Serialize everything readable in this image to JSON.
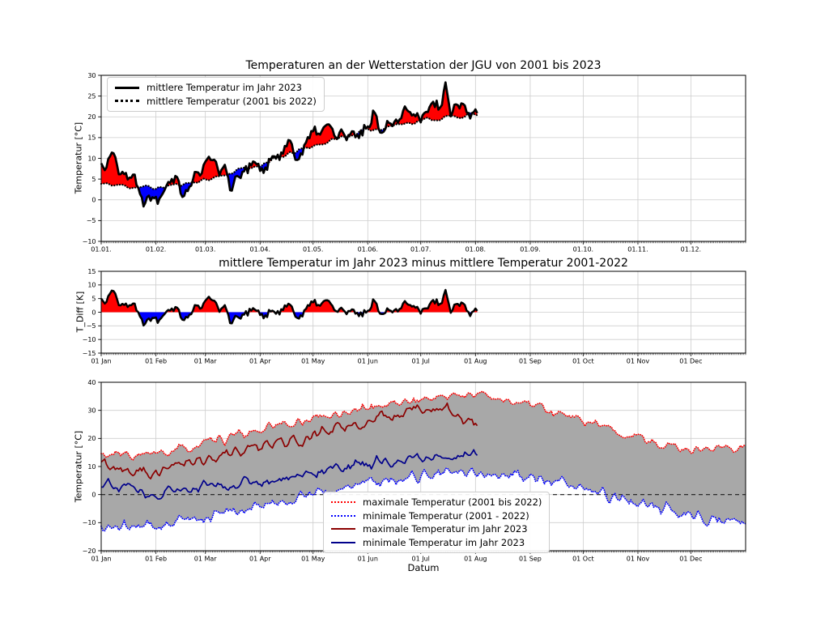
{
  "figure": {
    "background": "#ffffff"
  },
  "chart_data": [
    {
      "id": "mean-temperature-2023-vs-climatology",
      "type": "line",
      "title": "Temperaturen an der Wetterstation der JGU von 2001 bis 2023",
      "xlabel": "",
      "ylabel": "Temperatur [°C]",
      "ylim": [
        -10,
        30
      ],
      "yticks": [
        30,
        25,
        20,
        15,
        10,
        5,
        0,
        -5,
        -10
      ],
      "ytick_labels": [
        "30",
        "25",
        "20",
        "15",
        "10",
        "5",
        "0",
        "−5",
        "−10"
      ],
      "xlim_days": [
        0,
        365
      ],
      "xticks": {
        "days": [
          0,
          31,
          59,
          90,
          120,
          151,
          181,
          212,
          243,
          273,
          304,
          334
        ],
        "labels": [
          "01.01.",
          "01.02.",
          "01.03.",
          "01.04.",
          "01.05.",
          "01.06.",
          "01.07.",
          "01.08.",
          "01.09.",
          "01.10.",
          "01.11.",
          "01.12."
        ]
      },
      "grid": true,
      "legend": {
        "position": "upper left",
        "entries": [
          {
            "label": "mittlere Temperatur im Jahr 2023",
            "color": "#000000",
            "style": "solid",
            "width": 3
          },
          {
            "label": "mittlere Temperatur (2001 bis 2022)",
            "color": "#000000",
            "style": "dotted",
            "width": 3
          }
        ]
      },
      "fills": [
        {
          "a": "mean_2023",
          "b": "climo_mean",
          "above_color": "#ff0000",
          "below_color": "#0000ff"
        }
      ],
      "zero_line": false,
      "series": [
        {
          "key": "climo_mean",
          "name": "mittlere Temperatur (2001 bis 2022)",
          "color": "#000000",
          "linestyle": "dotted",
          "width": 2.3
        },
        {
          "key": "mean_2023",
          "name": "mittlere Temperatur im Jahr 2023",
          "color": "#000000",
          "linestyle": "solid",
          "width": 2.7
        }
      ],
      "series_models": {
        "climo_mean": {
          "days": 214,
          "seed": 11,
          "jitter_amp": 0.7,
          "jitter_smooth": 2,
          "anchor_days": [
            0,
            31,
            59,
            90,
            120,
            151,
            181,
            213
          ],
          "anchor_values": [
            3.8,
            2.8,
            4.8,
            8.5,
            13.0,
            16.8,
            19.2,
            20.6
          ]
        },
        "diff_2023": {
          "days": 214,
          "seed": 22,
          "jitter_amp": 3.6,
          "jitter_smooth": 1,
          "anchor_days": [
            0,
            8,
            16,
            24,
            32,
            40,
            48,
            56,
            64,
            74,
            84,
            94,
            104,
            114,
            124,
            134,
            144,
            154,
            164,
            174,
            184,
            194,
            204,
            213
          ],
          "anchor_values": [
            5,
            7,
            3,
            -2,
            -1,
            4,
            -2,
            3,
            5,
            -2,
            1,
            -2,
            3,
            -1,
            4,
            1,
            -2,
            3,
            1,
            4,
            2,
            5,
            1,
            -2
          ]
        },
        "mean_2023": {
          "sum_of": [
            "climo_mean",
            "diff_2023"
          ]
        }
      }
    },
    {
      "id": "temperature-difference-2023-minus-climatology",
      "type": "line",
      "title": "mittlere Temperatur im Jahr 2023 minus mittlere Temperatur 2001-2022",
      "xlabel": "",
      "ylabel": "T_Diff [K]",
      "ylim": [
        -15,
        15
      ],
      "yticks": [
        15,
        10,
        5,
        0,
        -5,
        -10,
        -15
      ],
      "ytick_labels": [
        "15",
        "10",
        "5",
        "0",
        "−5",
        "−10",
        "−15"
      ],
      "xlim_days": [
        0,
        365
      ],
      "xticks": {
        "days": [
          0,
          31,
          59,
          90,
          120,
          151,
          181,
          212,
          243,
          273,
          304,
          334
        ],
        "labels": [
          "01 Jan",
          "01 Feb",
          "01 Mar",
          "01 Apr",
          "01 May",
          "01 Jun",
          "01 Jul",
          "01 Aug",
          "01 Sep",
          "01 Oct",
          "01 Nov",
          "01 Dec"
        ]
      },
      "grid": true,
      "legend": null,
      "fills": [
        {
          "a": "diff_2023",
          "b": "zero",
          "above_color": "#ff0000",
          "below_color": "#0000ff"
        }
      ],
      "zero_line": false,
      "series": [
        {
          "key": "diff_2023",
          "name": "T_Diff",
          "color": "#000000",
          "linestyle": "solid",
          "width": 2.5
        }
      ],
      "series_models": {
        "diff_2023": {
          "days": 214,
          "seed": 22,
          "jitter_amp": 3.6,
          "jitter_smooth": 1,
          "anchor_days": [
            0,
            8,
            16,
            24,
            32,
            40,
            48,
            56,
            64,
            74,
            84,
            94,
            104,
            114,
            124,
            134,
            144,
            154,
            164,
            174,
            184,
            194,
            204,
            213
          ],
          "anchor_values": [
            5,
            7,
            3,
            -2,
            -1,
            4,
            -2,
            3,
            5,
            -2,
            1,
            -2,
            3,
            -1,
            4,
            1,
            -2,
            3,
            1,
            4,
            2,
            5,
            1,
            -2
          ]
        }
      }
    },
    {
      "id": "max-min-temperatures",
      "type": "line",
      "title": "",
      "xlabel": "Datum",
      "ylabel": "Temperatur [°C]",
      "ylim": [
        -20,
        40
      ],
      "yticks": [
        40,
        30,
        20,
        10,
        0,
        -10,
        -20
      ],
      "ytick_labels": [
        "40",
        "30",
        "20",
        "10",
        "0",
        "−10",
        "−20"
      ],
      "xlim_days": [
        0,
        365
      ],
      "xticks": {
        "days": [
          0,
          31,
          59,
          90,
          120,
          151,
          181,
          212,
          243,
          273,
          304,
          334
        ],
        "labels": [
          "01 Jan",
          "01 Feb",
          "01 Mar",
          "01 Apr",
          "01 May",
          "01 Jun",
          "01 Jul",
          "01 Aug",
          "01 Sep",
          "01 Oct",
          "01 Nov",
          "01 Dec"
        ]
      },
      "grid": true,
      "legend": {
        "position": "lower center",
        "entries": [
          {
            "label": "maximale Temperatur (2001 bis 2022)",
            "color": "#ff0000",
            "style": "dotted",
            "width": 2
          },
          {
            "label": "minimale Temperatur (2001 - 2022)",
            "color": "#0000ff",
            "style": "dotted",
            "width": 2
          },
          {
            "label": "maximale Temperatur im Jahr 2023",
            "color": "#8b0000",
            "style": "solid",
            "width": 2
          },
          {
            "label": "minimale Temperatur im Jahr 2023",
            "color": "#00008b",
            "style": "solid",
            "width": 2
          }
        ]
      },
      "fills": [
        {
          "a": "climo_max",
          "b": "climo_min",
          "above_color": "#a8a8a8",
          "below_color": "#a8a8a8"
        }
      ],
      "zero_line": true,
      "series": [
        {
          "key": "climo_max",
          "name": "maximale Temperatur (2001 bis 2022)",
          "color": "#ff0000",
          "linestyle": "dotted",
          "width": 1.8
        },
        {
          "key": "climo_min",
          "name": "minimale Temperatur (2001 - 2022)",
          "color": "#0000ff",
          "linestyle": "dotted",
          "width": 1.8
        },
        {
          "key": "max_2023",
          "name": "maximale Temperatur im Jahr 2023",
          "color": "#8b0000",
          "linestyle": "solid",
          "width": 1.7
        },
        {
          "key": "min_2023",
          "name": "minimale Temperatur im Jahr 2023",
          "color": "#00008b",
          "linestyle": "solid",
          "width": 1.7
        }
      ],
      "series_models": {
        "climo_max": {
          "days": 366,
          "seed": 33,
          "jitter_amp": 2.3,
          "jitter_smooth": 1,
          "anchor_days": [
            0,
            31,
            59,
            90,
            120,
            151,
            181,
            213,
            243,
            273,
            304,
            334,
            365
          ],
          "anchor_values": [
            14,
            14,
            18,
            23,
            27,
            31,
            34,
            36,
            32,
            26,
            20,
            16,
            17
          ]
        },
        "climo_min": {
          "days": 366,
          "seed": 44,
          "jitter_amp": 3.0,
          "jitter_smooth": 1,
          "anchor_days": [
            0,
            31,
            59,
            90,
            120,
            151,
            181,
            213,
            243,
            273,
            304,
            334,
            365
          ],
          "anchor_values": [
            -12,
            -11,
            -8,
            -4,
            0,
            4,
            7,
            8,
            6,
            2,
            -3,
            -8,
            -10
          ]
        },
        "max_2023": {
          "days": 214,
          "seed": 55,
          "jitter_amp": 3.0,
          "jitter_smooth": 1,
          "anchor_days": [
            0,
            31,
            59,
            90,
            120,
            151,
            181,
            196,
            213
          ],
          "anchor_values": [
            11,
            8,
            13,
            17,
            21,
            26,
            30,
            32,
            24
          ]
        },
        "min_2023": {
          "days": 214,
          "seed": 66,
          "jitter_amp": 2.5,
          "jitter_smooth": 1,
          "anchor_days": [
            0,
            31,
            59,
            90,
            120,
            151,
            181,
            213
          ],
          "anchor_values": [
            5,
            0,
            3,
            5,
            8,
            11,
            13,
            15
          ]
        }
      }
    }
  ]
}
